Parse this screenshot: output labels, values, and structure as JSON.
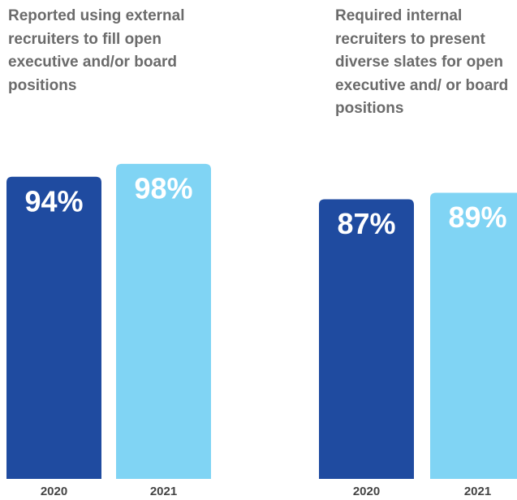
{
  "chart_data": [
    {
      "type": "bar",
      "title": "Reported using external recruiters to fill open executive and/or board positions",
      "categories": [
        "2020",
        "2021"
      ],
      "values": [
        94,
        98
      ],
      "value_labels": [
        "94%",
        "98%"
      ],
      "colors": [
        "#1f4ba0",
        "#80d4f4"
      ],
      "ylim": [
        0,
        100
      ]
    },
    {
      "type": "bar",
      "title": "Required internal recruiters to present diverse slates for open executive and/ or board positions",
      "categories": [
        "2020",
        "2021"
      ],
      "values": [
        87,
        89
      ],
      "value_labels": [
        "87%",
        "89%"
      ],
      "colors": [
        "#1f4ba0",
        "#80d4f4"
      ],
      "ylim": [
        0,
        100
      ]
    }
  ]
}
